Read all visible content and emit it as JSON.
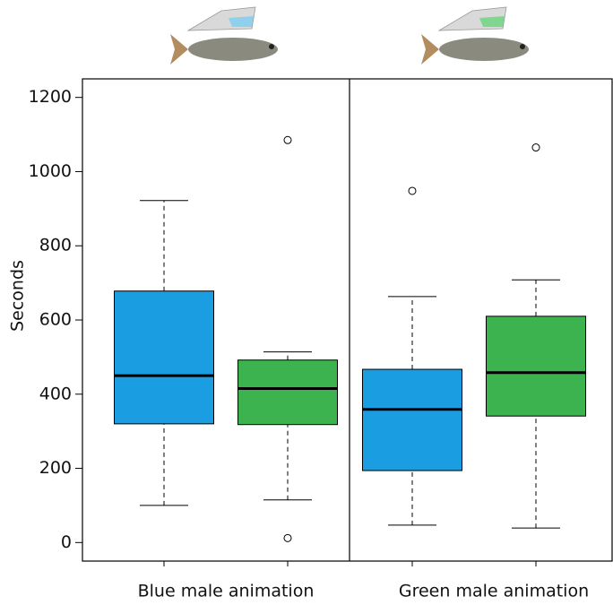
{
  "chart_data": {
    "type": "boxplot",
    "y_label": "Seconds",
    "ylim": [
      -50,
      1250
    ],
    "yticks": [
      0,
      200,
      400,
      600,
      800,
      1000,
      1200
    ],
    "panels": [
      {
        "label": "Blue male animation",
        "boxes": [
          {
            "color": "#1a9de1",
            "whislo": 100,
            "q1": 320,
            "med": 450,
            "q3": 678,
            "whishi": 922,
            "fliers": []
          },
          {
            "color": "#3cb34e",
            "whislo": 115,
            "q1": 318,
            "med": 415,
            "q3": 492,
            "whishi": 514,
            "fliers": [
              1085,
              12
            ]
          }
        ]
      },
      {
        "label": "Green male animation",
        "boxes": [
          {
            "color": "#1a9de1",
            "whislo": 47,
            "q1": 194,
            "med": 359,
            "q3": 467,
            "whishi": 663,
            "fliers": [
              948
            ]
          },
          {
            "color": "#3cb34e",
            "whislo": 39,
            "q1": 341,
            "med": 458,
            "q3": 610,
            "whishi": 708,
            "fliers": [
              1065
            ]
          }
        ]
      }
    ]
  }
}
